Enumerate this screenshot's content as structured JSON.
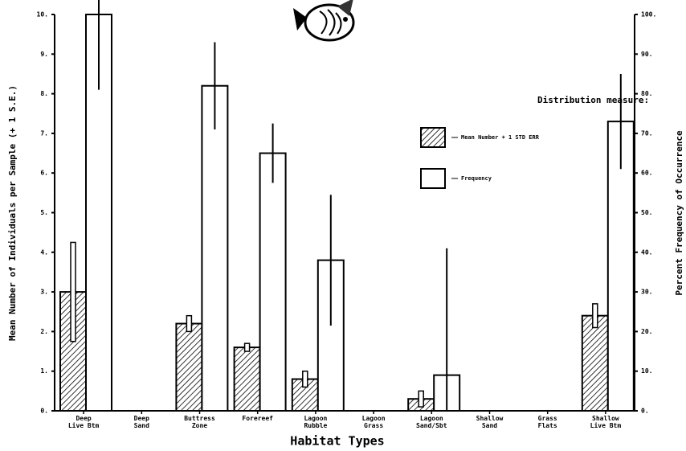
{
  "chart_data": {
    "type": "bar",
    "x_label": "Habitat Types",
    "y_label": "Mean Number of Individuals per Sample (+ 1 S.E.)",
    "y2_label": "Percent Frequency of Occurrence",
    "legend_title": "Distribution measure:",
    "categories": [
      "Deep\nLive Btm",
      "Deep\nSand",
      "Buttress\nZone",
      "Forereef",
      "Lagoon\nRubble",
      "Lagoon\nGrass",
      "Lagoon\nSand/Sbt",
      "Shallow\nSand",
      "Grass\nFlats",
      "Shallow\nLive Btm"
    ],
    "series": [
      {
        "name": "Mean Number + 1 STD ERR",
        "color": "#000000",
        "pattern": "hatch",
        "values": [
          3.0,
          null,
          2.2,
          1.6,
          0.8,
          null,
          0.3,
          null,
          null,
          2.4
        ],
        "errors": [
          1.25,
          null,
          0.2,
          0.1,
          0.2,
          null,
          0.2,
          null,
          null,
          0.3
        ]
      },
      {
        "name": "Frequency",
        "color": "#ffffff",
        "axis": "y2",
        "values": [
          100,
          null,
          82,
          65,
          38,
          null,
          9,
          null,
          null,
          73
        ],
        "errors": [
          19,
          null,
          11,
          7.5,
          16.5,
          null,
          32,
          null,
          null,
          12
        ]
      }
    ],
    "ylim": [
      0,
      10
    ],
    "yticks": [
      {
        "value": 0,
        "label": "0."
      },
      {
        "value": 1,
        "label": "1."
      },
      {
        "value": 2,
        "label": "2."
      },
      {
        "value": 3,
        "label": "3."
      },
      {
        "value": 4,
        "label": "4."
      },
      {
        "value": 5,
        "label": "5."
      },
      {
        "value": 6,
        "label": "6."
      },
      {
        "value": 7,
        "label": "7."
      },
      {
        "value": 8,
        "label": "8."
      },
      {
        "value": 9,
        "label": "9."
      },
      {
        "value": 10,
        "label": "10."
      }
    ],
    "y2lim": [
      0,
      100
    ],
    "y2ticks": [
      {
        "value": 0,
        "label": "0."
      },
      {
        "value": 10,
        "label": "10."
      },
      {
        "value": 20,
        "label": "20."
      },
      {
        "value": 30,
        "label": "30."
      },
      {
        "value": 40,
        "label": "40."
      },
      {
        "value": 50,
        "label": "50."
      },
      {
        "value": 60,
        "label": "60."
      },
      {
        "value": 70,
        "label": "70."
      },
      {
        "value": 80,
        "label": "80."
      },
      {
        "value": 90,
        "label": "90."
      },
      {
        "value": 100,
        "label": "100."
      }
    ]
  }
}
